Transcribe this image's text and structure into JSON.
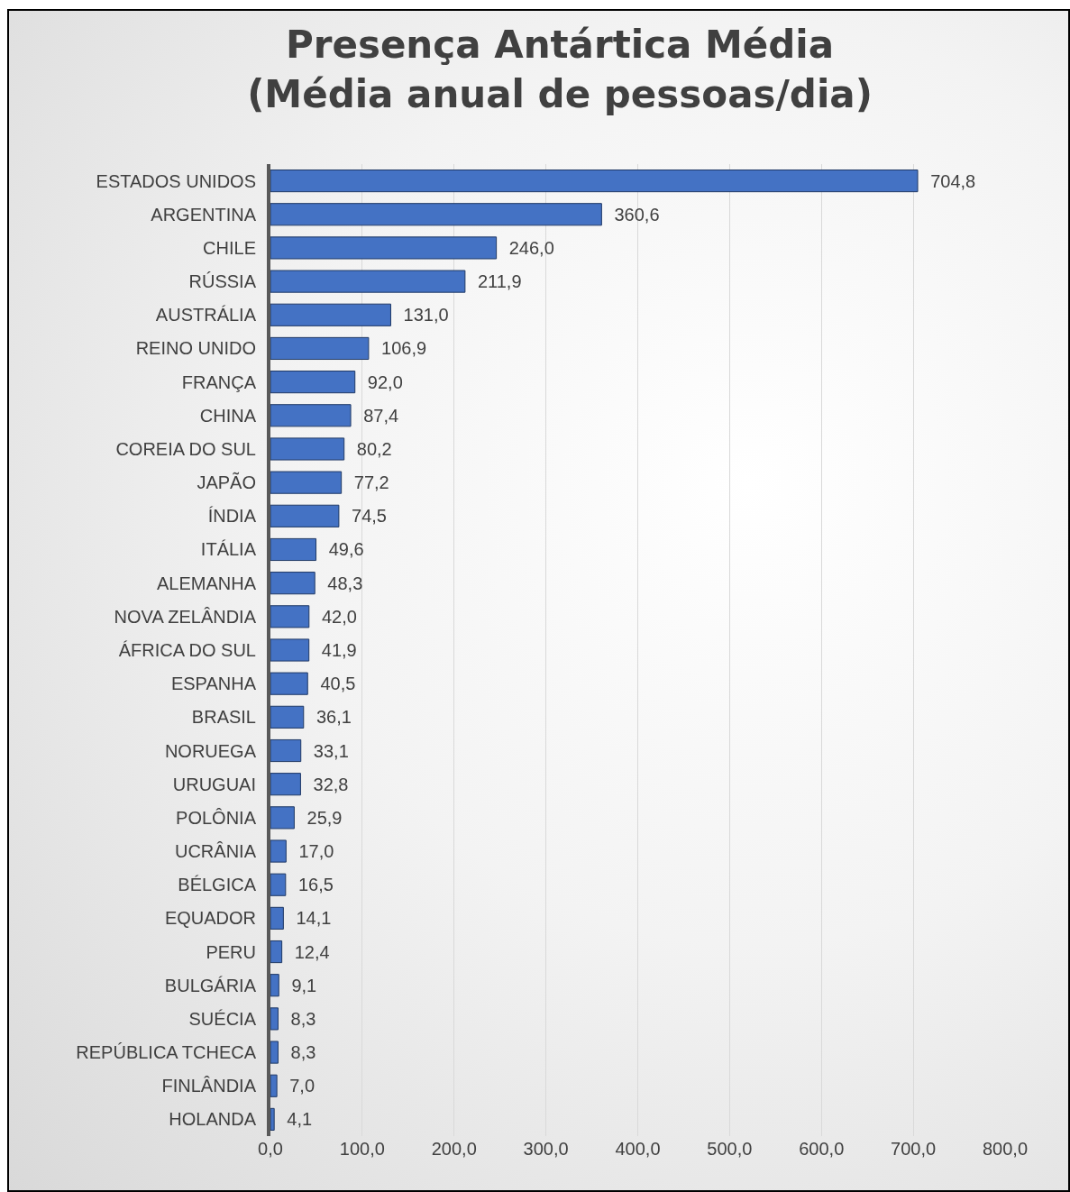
{
  "chart_data": {
    "type": "bar",
    "orientation": "horizontal",
    "title": "Presença Antártica Média\n(Média anual de pessoas/dia)",
    "categories": [
      "ESTADOS UNIDOS",
      "ARGENTINA",
      "CHILE",
      "RÚSSIA",
      "AUSTRÁLIA",
      "REINO UNIDO",
      "FRANÇA",
      "CHINA",
      "COREIA DO SUL",
      "JAPÃO",
      "ÍNDIA",
      "ITÁLIA",
      "ALEMANHA",
      "NOVA ZELÂNDIA",
      "ÁFRICA DO SUL",
      "ESPANHA",
      "BRASIL",
      "NORUEGA",
      "URUGUAI",
      "POLÔNIA",
      "UCRÂNIA",
      "BÉLGICA",
      "EQUADOR",
      "PERU",
      "BULGÁRIA",
      "SUÉCIA",
      "REPÚBLICA TCHECA",
      "FINLÂNDIA",
      "HOLANDA"
    ],
    "values": [
      704.8,
      360.6,
      246.0,
      211.9,
      131.0,
      106.9,
      92.0,
      87.4,
      80.2,
      77.2,
      74.5,
      49.6,
      48.3,
      42.0,
      41.9,
      40.5,
      36.1,
      33.1,
      32.8,
      25.9,
      17.0,
      16.5,
      14.1,
      12.4,
      9.1,
      8.3,
      8.3,
      7.0,
      4.1
    ],
    "value_labels": [
      "704,8",
      "360,6",
      "246,0",
      "211,9",
      "131,0",
      "106,9",
      "92,0",
      "87,4",
      "80,2",
      "77,2",
      "74,5",
      "49,6",
      "48,3",
      "42,0",
      "41,9",
      "40,5",
      "36,1",
      "33,1",
      "32,8",
      "25,9",
      "17,0",
      "16,5",
      "14,1",
      "12,4",
      "9,1",
      "8,3",
      "8,3",
      "7,0",
      "4,1"
    ],
    "color": "#4472c4",
    "xlim": [
      0,
      800
    ],
    "xticks": [
      {
        "value": 0,
        "label": "0,0"
      },
      {
        "value": 100,
        "label": "100,0"
      },
      {
        "value": 200,
        "label": "200,0"
      },
      {
        "value": 300,
        "label": "300,0"
      },
      {
        "value": 400,
        "label": "400,0"
      },
      {
        "value": 500,
        "label": "500,0"
      },
      {
        "value": 600,
        "label": "600,0"
      },
      {
        "value": 700,
        "label": "700,0"
      },
      {
        "value": 800,
        "label": "800,0"
      }
    ],
    "grid": "x"
  }
}
